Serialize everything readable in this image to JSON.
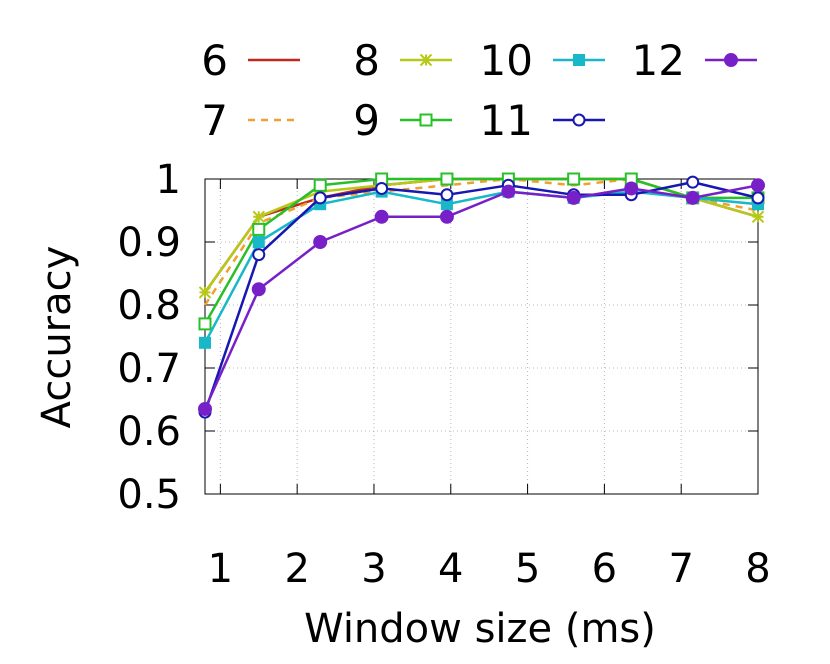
{
  "chart_data": {
    "type": "line",
    "xlabel": "Window size (ms)",
    "ylabel": "Accuracy",
    "xlim": [
      0.8,
      8
    ],
    "ylim": [
      0.5,
      1
    ],
    "xticks": [
      {
        "value": 1,
        "label": "1"
      },
      {
        "value": 2,
        "label": "2"
      },
      {
        "value": 3,
        "label": "3"
      },
      {
        "value": 4,
        "label": "4"
      },
      {
        "value": 5,
        "label": "5"
      },
      {
        "value": 6,
        "label": "6"
      },
      {
        "value": 7,
        "label": "7"
      },
      {
        "value": 8,
        "label": "8"
      }
    ],
    "yticks": [
      {
        "value": 0.5,
        "label": "0.5"
      },
      {
        "value": 0.6,
        "label": "0.6"
      },
      {
        "value": 0.7,
        "label": "0.7"
      },
      {
        "value": 0.8,
        "label": "0.8"
      },
      {
        "value": 0.9,
        "label": "0.9"
      },
      {
        "value": 1.0,
        "label": "1"
      }
    ],
    "grid": true,
    "legend_position": "top, outside plot",
    "x": [
      0.8,
      1.5,
      2.3,
      3.1,
      3.95,
      4.75,
      5.6,
      6.35,
      7.15,
      8.0
    ],
    "series": [
      {
        "name": "6",
        "color": "#c0281e",
        "dash": "solid",
        "marker": "none",
        "values": [
          0.82,
          0.94,
          0.97,
          0.99,
          1.0,
          1.0,
          1.0,
          1.0,
          0.97,
          0.94
        ]
      },
      {
        "name": "7",
        "color": "#f0a030",
        "dash": "dashed",
        "marker": "none",
        "values": [
          0.8,
          0.93,
          0.97,
          0.98,
          0.99,
          1.0,
          0.99,
          1.0,
          0.97,
          0.95
        ]
      },
      {
        "name": "8",
        "color": "#b8c818",
        "dash": "solid",
        "marker": "asterisk",
        "values": [
          0.82,
          0.94,
          0.98,
          0.99,
          1.0,
          1.0,
          1.0,
          1.0,
          0.97,
          0.94
        ]
      },
      {
        "name": "9",
        "color": "#28c028",
        "dash": "solid",
        "marker": "open-square",
        "values": [
          0.77,
          0.92,
          0.99,
          1.0,
          1.0,
          1.0,
          1.0,
          1.0,
          0.97,
          0.97
        ]
      },
      {
        "name": "10",
        "color": "#18b8c8",
        "dash": "solid",
        "marker": "filled-square",
        "values": [
          0.74,
          0.9,
          0.96,
          0.98,
          0.96,
          0.98,
          0.97,
          0.98,
          0.97,
          0.96
        ]
      },
      {
        "name": "11",
        "color": "#1818b0",
        "dash": "solid",
        "marker": "open-circle",
        "values": [
          0.63,
          0.88,
          0.97,
          0.985,
          0.975,
          0.99,
          0.975,
          0.975,
          0.995,
          0.97
        ]
      },
      {
        "name": "12",
        "color": "#7820c8",
        "dash": "solid",
        "marker": "filled-circle",
        "values": [
          0.635,
          0.825,
          0.9,
          0.94,
          0.94,
          0.98,
          0.97,
          0.985,
          0.97,
          0.99
        ]
      }
    ]
  }
}
